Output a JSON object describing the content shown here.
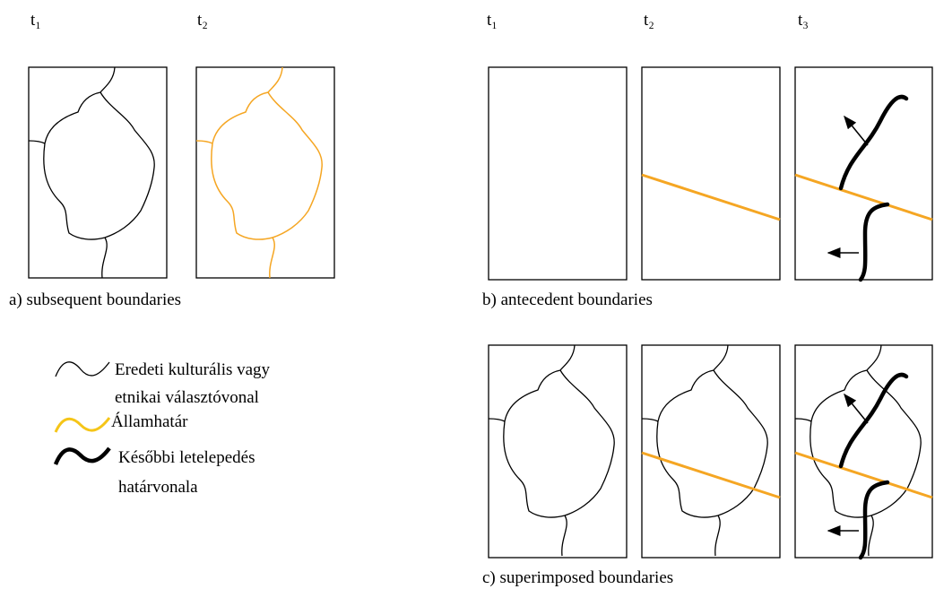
{
  "panel_a": {
    "time_labels": [
      "t₁",
      "t₂"
    ],
    "caption": "a)   subsequent boundaries"
  },
  "panel_b": {
    "time_labels": [
      "t₁",
      "t₂",
      "t₃"
    ],
    "caption": "b) antecedent boundaries"
  },
  "panel_c": {
    "caption": "c) superimposed boundaries"
  },
  "legend": [
    {
      "lines": [
        "Eredeti kulturális vagy",
        "etnikai választóvonal"
      ]
    },
    {
      "lines": [
        "Államhatár"
      ]
    },
    {
      "lines": [
        "Későbbi letelepedés",
        "határvonala"
      ]
    }
  ]
}
